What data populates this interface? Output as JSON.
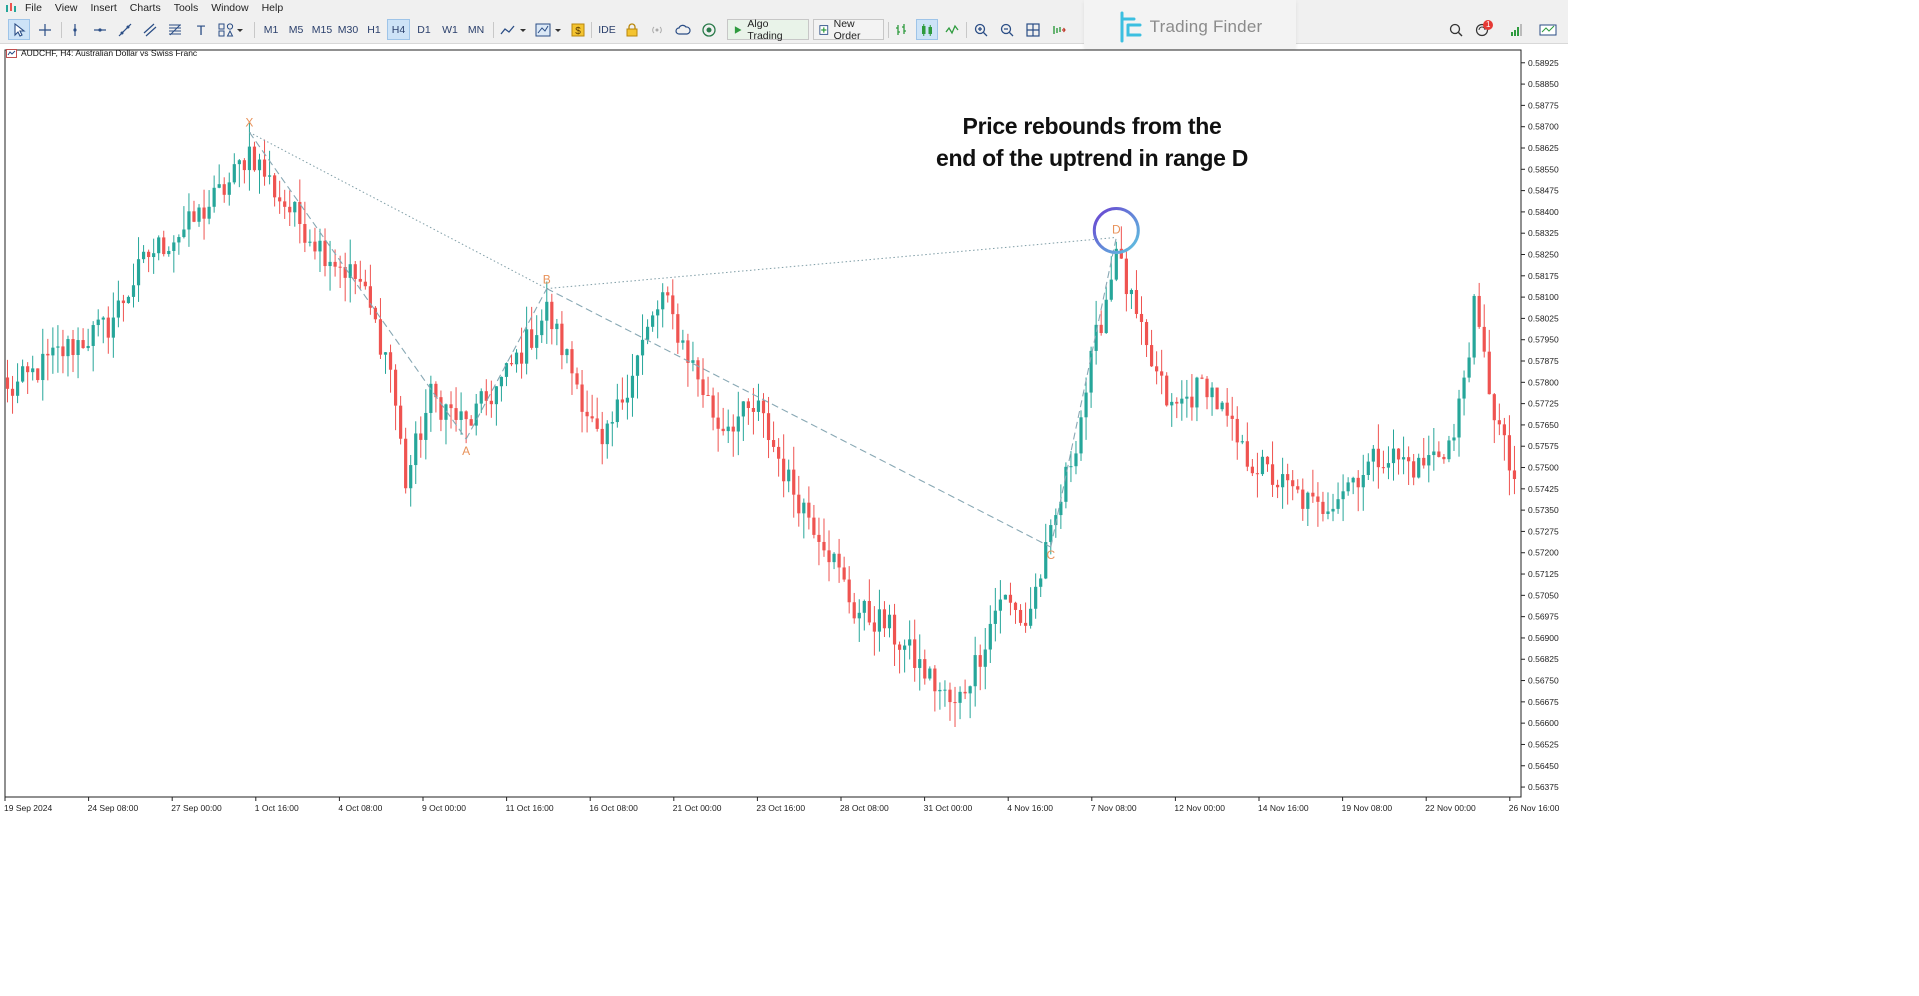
{
  "menu": [
    "File",
    "View",
    "Insert",
    "Charts",
    "Tools",
    "Window",
    "Help"
  ],
  "toolbar": {
    "timeframes": [
      "M1",
      "M5",
      "M15",
      "M30",
      "H1",
      "H4",
      "D1",
      "W1",
      "MN"
    ],
    "active_timeframe": "H4",
    "ide_label": "IDE",
    "algo_trading_label": "Algo Trading",
    "new_order_label": "New Order",
    "notification_count": "1",
    "tool_icons": [
      "cursor-icon",
      "crosshair-icon",
      "vertical-line-icon",
      "horizontal-line-icon",
      "trendline-icon",
      "channel-icon",
      "fibonacci-icon",
      "text-icon",
      "shapes-icon"
    ]
  },
  "logo": {
    "text": "Trading Finder"
  },
  "chart": {
    "symbol_label": "AUDCHF, H4:  Australian Dollar vs Swiss Franc",
    "annotation_lines": [
      "Price rebounds from the",
      "end of the uptrend in range D"
    ],
    "colors": {
      "bull": "#26a69a",
      "bear": "#ef5350",
      "pattern": "#e8925a",
      "pattern_line": "#88a8b4",
      "highlight_ring": "#6a3fd1"
    }
  },
  "chart_data": {
    "type": "candlestick",
    "price_axis": [
      "0.58925",
      "0.58850",
      "0.58775",
      "0.58700",
      "0.58625",
      "0.58550",
      "0.58475",
      "0.58400",
      "0.58325",
      "0.58250",
      "0.58175",
      "0.58100",
      "0.58025",
      "0.57950",
      "0.57875",
      "0.57800",
      "0.57725",
      "0.57650",
      "0.57575",
      "0.57500",
      "0.57425",
      "0.57350",
      "0.57275",
      "0.57200",
      "0.57125",
      "0.57050",
      "0.56975",
      "0.56900",
      "0.56825",
      "0.56750",
      "0.56675",
      "0.56600",
      "0.56525",
      "0.56450",
      "0.56375"
    ],
    "ylim": [
      0.5634,
      0.5897
    ],
    "time_axis": [
      "19 Sep 2024",
      "24 Sep 08:00",
      "27 Sep 00:00",
      "1 Oct 16:00",
      "4 Oct 08:00",
      "9 Oct 00:00",
      "11 Oct 16:00",
      "16 Oct 08:00",
      "21 Oct 00:00",
      "23 Oct 16:00",
      "28 Oct 08:00",
      "31 Oct 00:00",
      "4 Nov 16:00",
      "7 Nov 08:00",
      "12 Nov 00:00",
      "14 Nov 16:00",
      "19 Nov 08:00",
      "22 Nov 00:00",
      "26 Nov 16:00"
    ],
    "pattern_points": [
      {
        "label": "X",
        "bar": 48,
        "price": 0.5868
      },
      {
        "label": "A",
        "bar": 91,
        "price": 0.576
      },
      {
        "label": "B",
        "bar": 107,
        "price": 0.5813
      },
      {
        "label": "C",
        "bar": 207,
        "price": 0.5722
      },
      {
        "label": "D",
        "bar": 220,
        "price": 0.5831
      }
    ],
    "anchors": [
      [
        0,
        0.5776
      ],
      [
        10,
        0.579
      ],
      [
        20,
        0.58
      ],
      [
        28,
        0.5825
      ],
      [
        36,
        0.5835
      ],
      [
        44,
        0.585
      ],
      [
        48,
        0.5862
      ],
      [
        54,
        0.5845
      ],
      [
        62,
        0.5828
      ],
      [
        70,
        0.5815
      ],
      [
        76,
        0.5785
      ],
      [
        79,
        0.5745
      ],
      [
        84,
        0.5775
      ],
      [
        91,
        0.5765
      ],
      [
        98,
        0.578
      ],
      [
        107,
        0.5805
      ],
      [
        113,
        0.578
      ],
      [
        118,
        0.5755
      ],
      [
        124,
        0.5785
      ],
      [
        130,
        0.581
      ],
      [
        135,
        0.579
      ],
      [
        141,
        0.5765
      ],
      [
        149,
        0.577
      ],
      [
        155,
        0.5745
      ],
      [
        162,
        0.5725
      ],
      [
        168,
        0.57
      ],
      [
        174,
        0.5695
      ],
      [
        181,
        0.568
      ],
      [
        188,
        0.5665
      ],
      [
        193,
        0.5685
      ],
      [
        197,
        0.5705
      ],
      [
        202,
        0.5695
      ],
      [
        207,
        0.5725
      ],
      [
        212,
        0.576
      ],
      [
        216,
        0.5795
      ],
      [
        220,
        0.5825
      ],
      [
        226,
        0.579
      ],
      [
        231,
        0.577
      ],
      [
        238,
        0.578
      ],
      [
        245,
        0.5755
      ],
      [
        252,
        0.5745
      ],
      [
        260,
        0.5735
      ],
      [
        266,
        0.5745
      ],
      [
        273,
        0.5755
      ],
      [
        280,
        0.575
      ],
      [
        287,
        0.576
      ],
      [
        291,
        0.5805
      ],
      [
        295,
        0.577
      ],
      [
        298,
        0.575
      ],
      [
        302,
        0.5735
      ]
    ]
  }
}
